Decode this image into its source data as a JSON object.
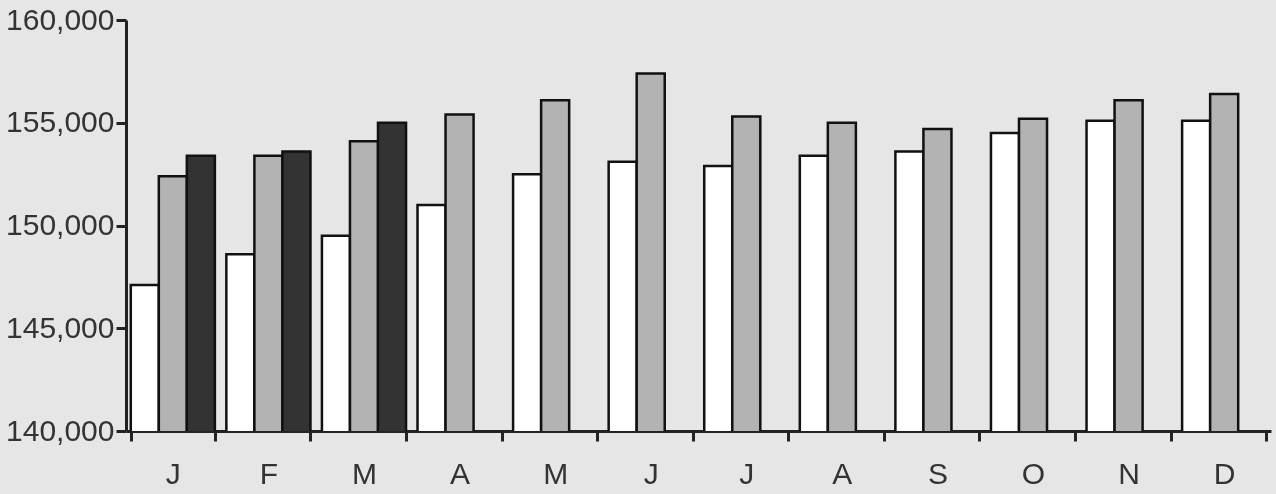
{
  "chart_data": {
    "type": "bar",
    "categories": [
      "J",
      "F",
      "M",
      "A",
      "M",
      "J",
      "J",
      "A",
      "S",
      "O",
      "N",
      "D"
    ],
    "series": [
      {
        "color": "#ffffff",
        "values": [
          147100,
          148600,
          149500,
          151000,
          152500,
          153100,
          152900,
          153400,
          153600,
          154500,
          155100,
          155100
        ]
      },
      {
        "color": "#b3b3b3",
        "values": [
          152400,
          153400,
          154100,
          155400,
          156100,
          157400,
          155300,
          155000,
          154700,
          155200,
          156100,
          156400
        ]
      },
      {
        "color": "#333333",
        "values": [
          153400,
          153600,
          155000,
          null,
          null,
          null,
          null,
          null,
          null,
          null,
          null,
          null
        ]
      }
    ],
    "ylim": [
      140000,
      160000
    ],
    "yticks": [
      {
        "value": 140000,
        "label": "140,000"
      },
      {
        "value": 145000,
        "label": "145,000"
      },
      {
        "value": 150000,
        "label": "150,000"
      },
      {
        "value": 155000,
        "label": "155,000"
      },
      {
        "value": 160000,
        "label": "160,000"
      }
    ],
    "grid": false
  }
}
